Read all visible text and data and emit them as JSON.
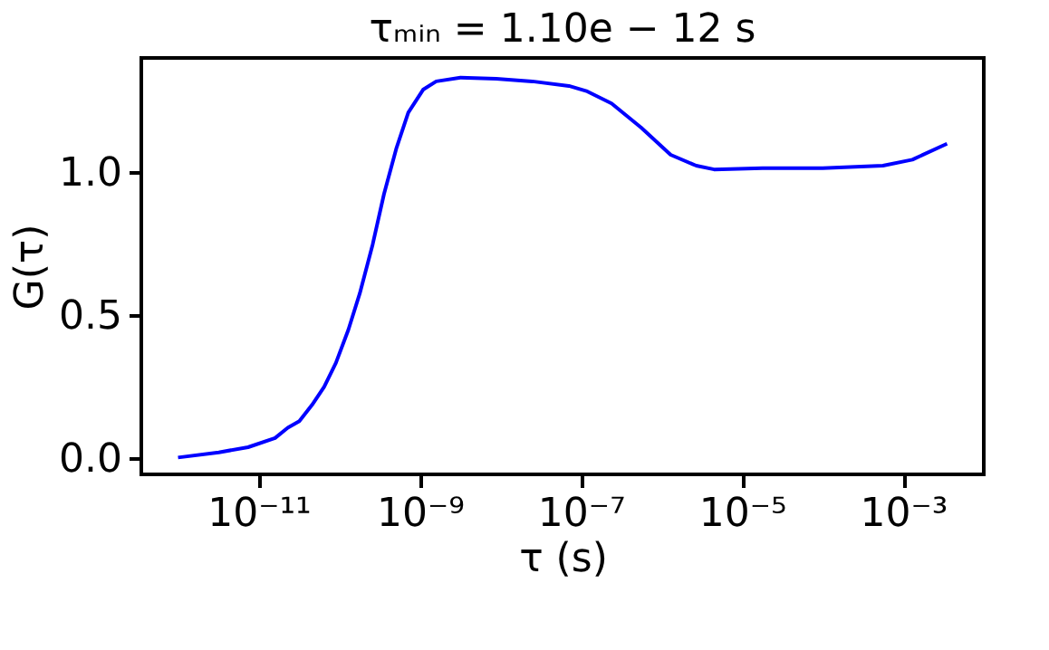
{
  "chart_data": {
    "type": "line",
    "title": "τₘᵢₙ = 1.10e − 12 s",
    "xlabel": "τ (s)",
    "ylabel": "G(τ)",
    "log": "x",
    "grid": false,
    "x": [
      1e-12,
      3.2e-12,
      7.4e-12,
      1.6e-11,
      2.3e-11,
      3.2e-11,
      4.6e-11,
      6.5e-11,
      9.1e-11,
      1.3e-10,
      1.8e-10,
      2.6e-10,
      3.6e-10,
      5.1e-10,
      7.2e-10,
      1.1e-09,
      1.6e-09,
      3.2e-09,
      8.9e-09,
      2.5e-08,
      7.1e-08,
      1.2e-07,
      2.4e-07,
      5.6e-07,
      1.3e-06,
      2.7e-06,
      4.5e-06,
      1.8e-05,
      0.0001,
      0.00056,
      0.0013,
      0.0035
    ],
    "series": [
      {
        "color": "#0000ff",
        "values": [
          0.002,
          0.02,
          0.038,
          0.07,
          0.106,
          0.129,
          0.186,
          0.249,
          0.333,
          0.449,
          0.576,
          0.747,
          0.924,
          1.082,
          1.209,
          1.289,
          1.318,
          1.331,
          1.327,
          1.318,
          1.302,
          1.283,
          1.241,
          1.156,
          1.061,
          1.023,
          1.01,
          1.014,
          1.014,
          1.023,
          1.044,
          1.1
        ]
      }
    ],
    "xlim": [
      3.5e-13,
      0.01
    ],
    "xticks": [
      {
        "value": 1e-11,
        "label": "10⁻¹¹"
      },
      {
        "value": 1e-09,
        "label": "10⁻⁹"
      },
      {
        "value": 1e-07,
        "label": "10⁻⁷"
      },
      {
        "value": 1e-05,
        "label": "10⁻⁵"
      },
      {
        "value": 0.001,
        "label": "10⁻³"
      }
    ],
    "ylim": [
      -0.057,
      1.4
    ],
    "yticks": [
      {
        "value": 0,
        "label": "0.0"
      },
      {
        "value": 0.5,
        "label": "0.5"
      },
      {
        "value": 1,
        "label": "1.0"
      }
    ],
    "line_style": "solid",
    "marker": "none"
  }
}
